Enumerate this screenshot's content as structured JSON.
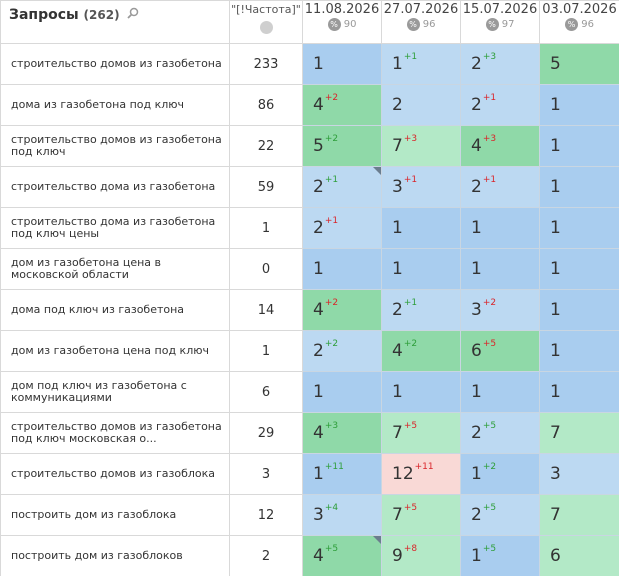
{
  "header": {
    "queries_title": "Запросы",
    "queries_count": "(262)",
    "freq_title": "\"[!Частота]\"",
    "dates": [
      {
        "date": "11.08.2026",
        "pct_label": "%",
        "count": "90"
      },
      {
        "date": "27.07.2026",
        "pct_label": "%",
        "count": "96"
      },
      {
        "date": "15.07.2026",
        "pct_label": "%",
        "count": "97"
      },
      {
        "date": "03.07.2026",
        "pct_label": "%",
        "count": "96"
      }
    ]
  },
  "rows": [
    {
      "query": "строительство домов из газобетона",
      "freq": "233",
      "pos": [
        {
          "v": "1",
          "d": "",
          "dir": "",
          "c": "blue",
          "m": false
        },
        {
          "v": "1",
          "d": "+1",
          "dir": "up",
          "c": "lblue",
          "m": false
        },
        {
          "v": "2",
          "d": "+3",
          "dir": "up",
          "c": "lblue",
          "m": false
        },
        {
          "v": "5",
          "d": "",
          "dir": "",
          "c": "green",
          "m": false
        }
      ]
    },
    {
      "query": "дома из газобетона под ключ",
      "freq": "86",
      "pos": [
        {
          "v": "4",
          "d": "+2",
          "dir": "dn",
          "c": "green",
          "m": false
        },
        {
          "v": "2",
          "d": "",
          "dir": "",
          "c": "lblue",
          "m": false
        },
        {
          "v": "2",
          "d": "+1",
          "dir": "dn",
          "c": "lblue",
          "m": false
        },
        {
          "v": "1",
          "d": "",
          "dir": "",
          "c": "blue",
          "m": false
        }
      ]
    },
    {
      "query": "строительство домов из газобетона под ключ",
      "freq": "22",
      "pos": [
        {
          "v": "5",
          "d": "+2",
          "dir": "up",
          "c": "green",
          "m": false
        },
        {
          "v": "7",
          "d": "+3",
          "dir": "dn",
          "c": "lgreen",
          "m": false
        },
        {
          "v": "4",
          "d": "+3",
          "dir": "dn",
          "c": "green",
          "m": false
        },
        {
          "v": "1",
          "d": "",
          "dir": "",
          "c": "blue",
          "m": false
        }
      ]
    },
    {
      "query": "строительство дома из газобетона",
      "freq": "59",
      "pos": [
        {
          "v": "2",
          "d": "+1",
          "dir": "up",
          "c": "lblue",
          "m": true
        },
        {
          "v": "3",
          "d": "+1",
          "dir": "dn",
          "c": "lblue",
          "m": false
        },
        {
          "v": "2",
          "d": "+1",
          "dir": "dn",
          "c": "lblue",
          "m": false
        },
        {
          "v": "1",
          "d": "",
          "dir": "",
          "c": "blue",
          "m": false
        }
      ]
    },
    {
      "query": "строительство дома из газобетона под ключ цены",
      "freq": "1",
      "pos": [
        {
          "v": "2",
          "d": "+1",
          "dir": "dn",
          "c": "lblue",
          "m": false
        },
        {
          "v": "1",
          "d": "",
          "dir": "",
          "c": "blue",
          "m": false
        },
        {
          "v": "1",
          "d": "",
          "dir": "",
          "c": "blue",
          "m": false
        },
        {
          "v": "1",
          "d": "",
          "dir": "",
          "c": "blue",
          "m": false
        }
      ]
    },
    {
      "query": "дом из газобетона цена в московской области",
      "freq": "0",
      "pos": [
        {
          "v": "1",
          "d": "",
          "dir": "",
          "c": "blue",
          "m": false
        },
        {
          "v": "1",
          "d": "",
          "dir": "",
          "c": "blue",
          "m": false
        },
        {
          "v": "1",
          "d": "",
          "dir": "",
          "c": "blue",
          "m": false
        },
        {
          "v": "1",
          "d": "",
          "dir": "",
          "c": "blue",
          "m": false
        }
      ]
    },
    {
      "query": "дома под ключ из газобетона",
      "freq": "14",
      "pos": [
        {
          "v": "4",
          "d": "+2",
          "dir": "dn",
          "c": "green",
          "m": false
        },
        {
          "v": "2",
          "d": "+1",
          "dir": "up",
          "c": "lblue",
          "m": false
        },
        {
          "v": "3",
          "d": "+2",
          "dir": "dn",
          "c": "lblue",
          "m": false
        },
        {
          "v": "1",
          "d": "",
          "dir": "",
          "c": "blue",
          "m": false
        }
      ]
    },
    {
      "query": "дом из газобетона цена под ключ",
      "freq": "1",
      "pos": [
        {
          "v": "2",
          "d": "+2",
          "dir": "up",
          "c": "lblue",
          "m": false
        },
        {
          "v": "4",
          "d": "+2",
          "dir": "up",
          "c": "green",
          "m": false
        },
        {
          "v": "6",
          "d": "+5",
          "dir": "dn",
          "c": "green",
          "m": false
        },
        {
          "v": "1",
          "d": "",
          "dir": "",
          "c": "blue",
          "m": false
        }
      ]
    },
    {
      "query": "дом под ключ из газобетона с коммуникациями",
      "freq": "6",
      "pos": [
        {
          "v": "1",
          "d": "",
          "dir": "",
          "c": "blue",
          "m": false
        },
        {
          "v": "1",
          "d": "",
          "dir": "",
          "c": "blue",
          "m": false
        },
        {
          "v": "1",
          "d": "",
          "dir": "",
          "c": "blue",
          "m": false
        },
        {
          "v": "1",
          "d": "",
          "dir": "",
          "c": "blue",
          "m": false
        }
      ]
    },
    {
      "query": "строительство домов из газобетона под ключ московская о...",
      "freq": "29",
      "pos": [
        {
          "v": "4",
          "d": "+3",
          "dir": "up",
          "c": "green",
          "m": false
        },
        {
          "v": "7",
          "d": "+5",
          "dir": "dn",
          "c": "lgreen",
          "m": false
        },
        {
          "v": "2",
          "d": "+5",
          "dir": "up",
          "c": "lblue",
          "m": false
        },
        {
          "v": "7",
          "d": "",
          "dir": "",
          "c": "lgreen",
          "m": false
        }
      ]
    },
    {
      "query": "строительство домов из газоблока",
      "freq": "3",
      "pos": [
        {
          "v": "1",
          "d": "+11",
          "dir": "up",
          "c": "blue",
          "m": false
        },
        {
          "v": "12",
          "d": "+11",
          "dir": "dn",
          "c": "pink",
          "m": false
        },
        {
          "v": "1",
          "d": "+2",
          "dir": "up",
          "c": "blue",
          "m": false
        },
        {
          "v": "3",
          "d": "",
          "dir": "",
          "c": "lblue",
          "m": false
        }
      ]
    },
    {
      "query": "построить дом из газоблока",
      "freq": "12",
      "pos": [
        {
          "v": "3",
          "d": "+4",
          "dir": "up",
          "c": "lblue",
          "m": false
        },
        {
          "v": "7",
          "d": "+5",
          "dir": "dn",
          "c": "lgreen",
          "m": false
        },
        {
          "v": "2",
          "d": "+5",
          "dir": "up",
          "c": "lblue",
          "m": false
        },
        {
          "v": "7",
          "d": "",
          "dir": "",
          "c": "lgreen",
          "m": false
        }
      ]
    },
    {
      "query": "построить дом из газоблоков",
      "freq": "2",
      "pos": [
        {
          "v": "4",
          "d": "+5",
          "dir": "up",
          "c": "green",
          "m": true
        },
        {
          "v": "9",
          "d": "+8",
          "dir": "dn",
          "c": "lgreen",
          "m": false
        },
        {
          "v": "1",
          "d": "+5",
          "dir": "up",
          "c": "blue",
          "m": false
        },
        {
          "v": "6",
          "d": "",
          "dir": "",
          "c": "lgreen",
          "m": false
        }
      ]
    }
  ],
  "icons": {
    "search": "magnifier-icon",
    "freq": "globe-icon",
    "percent": "percent-badge-icon",
    "marker": "corner-marker-icon"
  }
}
